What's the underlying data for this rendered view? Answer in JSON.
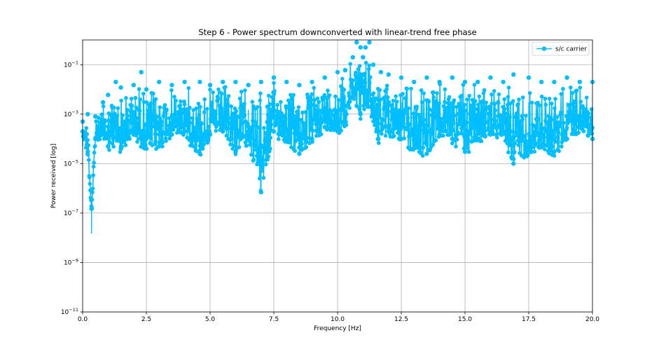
{
  "chart_data": {
    "type": "line",
    "title": "Step 6 - Power spectrum downconverted with linear-trend free phase",
    "xlabel": "Frequency [Hz]",
    "ylabel": "Power received [log]",
    "xlim": [
      0.0,
      20.0
    ],
    "ylim": [
      1e-11,
      1.0
    ],
    "yscale": "log",
    "grid": true,
    "legend_placement": "top-right",
    "x_ticks": [
      0.0,
      2.5,
      5.0,
      7.5,
      10.0,
      12.5,
      15.0,
      17.5,
      20.0
    ],
    "x_tick_labels": [
      "0.0",
      "2.5",
      "5.0",
      "7.5",
      "10.0",
      "12.5",
      "15.0",
      "17.5",
      "20.0"
    ],
    "y_ticks": [
      1e-11,
      1e-09,
      1e-07,
      1e-05,
      0.001,
      0.1
    ],
    "y_tick_labels": [
      {
        "base": "10",
        "exp": "−11"
      },
      {
        "base": "10",
        "exp": "−9"
      },
      {
        "base": "10",
        "exp": "−7"
      },
      {
        "base": "10",
        "exp": "−5"
      },
      {
        "base": "10",
        "exp": "−3"
      },
      {
        "base": "10",
        "exp": "−1"
      }
    ],
    "series": [
      {
        "name": "s/c carrier",
        "color": "#00bfff",
        "marker": "circle",
        "x": [
          0.0,
          0.2,
          0.35,
          0.5,
          0.8,
          1.0,
          1.3,
          1.5,
          2.0,
          2.3,
          2.5,
          3.0,
          3.5,
          4.0,
          4.6,
          5.0,
          5.5,
          6.0,
          6.5,
          7.0,
          7.5,
          8.0,
          8.5,
          9.0,
          9.5,
          10.0,
          10.3,
          10.6,
          10.75,
          10.9,
          11.0,
          11.1,
          11.25,
          11.4,
          11.7,
          12.0,
          12.5,
          13.0,
          13.5,
          14.0,
          14.5,
          15.0,
          15.5,
          16.0,
          16.5,
          16.9,
          17.5,
          18.0,
          18.5,
          19.0,
          19.5,
          20.0
        ],
        "y": [
          0.0005,
          0.001,
          1.5e-07,
          0.0008,
          0.003,
          0.006,
          0.02,
          0.012,
          0.015,
          0.05,
          0.01,
          0.02,
          0.015,
          0.02,
          0.02,
          0.015,
          0.02,
          0.02,
          0.015,
          0.02,
          0.03,
          0.02,
          0.015,
          0.02,
          0.03,
          0.05,
          0.06,
          0.2,
          0.8,
          0.5,
          0.2,
          0.5,
          0.8,
          0.1,
          0.05,
          0.04,
          0.03,
          0.02,
          0.03,
          0.02,
          0.03,
          0.02,
          0.02,
          0.03,
          0.02,
          0.04,
          0.03,
          0.02,
          0.02,
          0.03,
          0.02,
          0.02
        ],
        "lower_envelope": {
          "x": [
            0.0,
            0.2,
            0.35,
            0.5,
            0.8,
            1.0,
            1.5,
            2.0,
            2.5,
            3.0,
            3.5,
            4.0,
            4.6,
            5.0,
            5.5,
            6.0,
            6.5,
            7.0,
            7.5,
            8.0,
            8.5,
            9.0,
            9.5,
            10.0,
            10.3,
            10.6,
            10.9,
            11.2,
            11.6,
            12.0,
            12.5,
            13.0,
            13.5,
            14.0,
            14.5,
            15.0,
            15.5,
            16.0,
            16.5,
            16.9,
            17.5,
            18.0,
            18.5,
            19.0,
            19.5,
            20.0
          ],
          "y": [
            0.0002,
            3e-05,
            1.5e-07,
            0.0001,
            0.00015,
            5e-05,
            4e-05,
            0.00015,
            4e-05,
            5e-05,
            0.00015,
            0.0002,
            2.5e-05,
            0.00015,
            0.0002,
            3e-05,
            0.0001,
            7e-07,
            0.0002,
            0.0001,
            2.5e-05,
            0.0001,
            0.0003,
            0.0002,
            0.0004,
            0.005,
            0.001,
            0.002,
            0.0001,
            0.0002,
            0.0001,
            4e-05,
            2.5e-05,
            0.00015,
            0.0001,
            3e-05,
            0.0001,
            0.00015,
            0.0002,
            1e-05,
            3e-05,
            5e-05,
            3e-05,
            0.0001,
            0.0003,
            0.0001
          ]
        }
      }
    ]
  }
}
